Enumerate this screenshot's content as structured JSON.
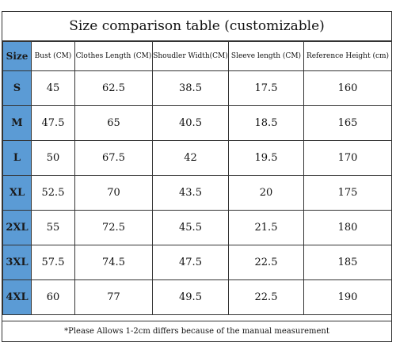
{
  "title": "Size comparison table (customizable)",
  "colors": {
    "size_column_bg": "#5b9bd5"
  },
  "headers": [
    "Size",
    "Bust (CM)",
    "Clothes Length (CM)",
    "Shoudler Width(CM)",
    "Sleeve length (CM)",
    "Reference Height (cm)"
  ],
  "rows": [
    [
      "S",
      "45",
      "62.5",
      "38.5",
      "17.5",
      "160"
    ],
    [
      "M",
      "47.5",
      "65",
      "40.5",
      "18.5",
      "165"
    ],
    [
      "L",
      "50",
      "67.5",
      "42",
      "19.5",
      "170"
    ],
    [
      "XL",
      "52.5",
      "70",
      "43.5",
      "20",
      "175"
    ],
    [
      "2XL",
      "55",
      "72.5",
      "45.5",
      "21.5",
      "180"
    ],
    [
      "3XL",
      "57.5",
      "74.5",
      "47.5",
      "22.5",
      "185"
    ],
    [
      "4XL",
      "60",
      "77",
      "49.5",
      "22.5",
      "190"
    ]
  ],
  "note": "*Please Allows 1-2cm differs because of the manual measurement"
}
